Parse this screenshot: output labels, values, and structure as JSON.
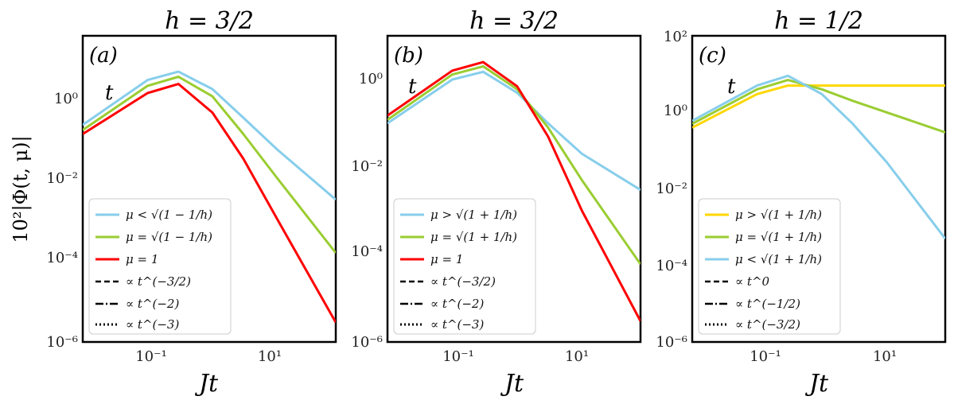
{
  "figure": {
    "ylabel": "10²|Φ(t, μ)|",
    "xlabel": "Jt"
  },
  "chart_data": [
    {
      "type": "line",
      "panel_tag": "(a)",
      "title": "h = 3/2",
      "xlabel": "Jt",
      "ylabel": "10²|Φ(t, μ)|",
      "xscale": "log",
      "yscale": "log",
      "xlim": [
        0.01,
        80
      ],
      "ylim": [
        1e-06,
        30
      ],
      "xticks": [
        "10⁻¹",
        "10¹"
      ],
      "yticks": [
        "10⁰",
        "10⁻²",
        "10⁻⁴",
        "10⁻⁶"
      ],
      "annotation": "t",
      "legend_position": "lower-left",
      "series": [
        {
          "name": "μ < √(1 − 1/h)",
          "color": "#87ceeb",
          "style": "solid",
          "x": [
            0.01,
            0.1,
            0.3,
            1,
            3,
            10,
            80
          ],
          "y": [
            0.2,
            2.5,
            4,
            1.5,
            0.3,
            0.05,
            0.003
          ]
        },
        {
          "name": "μ = √(1 − 1/h)",
          "color": "#9acd32",
          "style": "solid",
          "x": [
            0.01,
            0.1,
            0.3,
            1,
            3,
            10,
            80
          ],
          "y": [
            0.15,
            1.8,
            3,
            1,
            0.12,
            0.01,
            0.00015
          ]
        },
        {
          "name": "μ = 1",
          "color": "#ff0000",
          "style": "solid",
          "x": [
            0.01,
            0.1,
            0.3,
            1,
            3,
            10,
            80
          ],
          "y": [
            0.12,
            1.2,
            2,
            0.4,
            0.03,
            0.001,
            3e-06
          ]
        }
      ],
      "guides": [
        {
          "name": "∝ t^(−3/2)",
          "style": "dashed"
        },
        {
          "name": "∝ t^(−2)",
          "style": "dashdot"
        },
        {
          "name": "∝ t^(−3)",
          "style": "dotted"
        }
      ]
    },
    {
      "type": "line",
      "panel_tag": "(b)",
      "title": "h = 3/2",
      "xlabel": "Jt",
      "xscale": "log",
      "yscale": "log",
      "xlim": [
        0.01,
        80
      ],
      "ylim": [
        1e-06,
        10
      ],
      "xticks": [
        "10⁻¹",
        "10¹"
      ],
      "yticks": [
        "10⁰",
        "10⁻²",
        "10⁻⁴",
        "10⁻⁶"
      ],
      "annotation": "t",
      "legend_position": "lower-left",
      "series": [
        {
          "name": "μ > √(1 + 1/h)",
          "color": "#87ceeb",
          "style": "solid",
          "x": [
            0.01,
            0.1,
            0.3,
            1,
            3,
            10,
            80
          ],
          "y": [
            0.1,
            1,
            1.5,
            0.5,
            0.1,
            0.02,
            0.003
          ]
        },
        {
          "name": "μ = √(1 + 1/h)",
          "color": "#9acd32",
          "style": "solid",
          "x": [
            0.01,
            0.1,
            0.3,
            1,
            3,
            10,
            80
          ],
          "y": [
            0.12,
            1.3,
            2,
            0.6,
            0.08,
            0.005,
            6e-05
          ]
        },
        {
          "name": "μ = 1",
          "color": "#ff0000",
          "style": "solid",
          "x": [
            0.01,
            0.1,
            0.3,
            1,
            3,
            10,
            80
          ],
          "y": [
            0.15,
            1.6,
            2.5,
            0.7,
            0.05,
            0.001,
            3e-06
          ]
        }
      ],
      "guides": [
        {
          "name": "∝ t^(−3/2)",
          "style": "dashed"
        },
        {
          "name": "∝ t^(−2)",
          "style": "dashdot"
        },
        {
          "name": "∝ t^(−3)",
          "style": "dotted"
        }
      ]
    },
    {
      "type": "line",
      "panel_tag": "(c)",
      "title": "h = 1/2",
      "xlabel": "Jt",
      "xscale": "log",
      "yscale": "log",
      "xlim": [
        0.01,
        80
      ],
      "ylim": [
        1e-06,
        100
      ],
      "xticks": [
        "10⁻¹",
        "10¹"
      ],
      "yticks": [
        "10²",
        "10⁰",
        "10⁻²",
        "10⁻⁴",
        "10⁻⁶"
      ],
      "annotation": "t",
      "legend_position": "lower-left",
      "series": [
        {
          "name": "μ > √(1 + 1/h)",
          "color": "#ffd700",
          "style": "solid",
          "x": [
            0.01,
            0.1,
            0.3,
            1,
            3,
            10,
            80
          ],
          "y": [
            0.4,
            3,
            5,
            5,
            5,
            5,
            5
          ]
        },
        {
          "name": "μ = √(1 + 1/h)",
          "color": "#9acd32",
          "style": "solid",
          "x": [
            0.01,
            0.1,
            0.3,
            1,
            3,
            10,
            80
          ],
          "y": [
            0.5,
            4,
            7,
            4,
            2,
            1,
            0.3
          ]
        },
        {
          "name": "μ < √(1 + 1/h)",
          "color": "#87ceeb",
          "style": "solid",
          "x": [
            0.01,
            0.1,
            0.3,
            1,
            3,
            10,
            80
          ],
          "y": [
            0.6,
            5,
            9,
            3,
            0.5,
            0.05,
            0.0005
          ]
        }
      ],
      "guides": [
        {
          "name": "∝ t^0",
          "style": "dashed"
        },
        {
          "name": "∝ t^(−1/2)",
          "style": "dashdot"
        },
        {
          "name": "∝ t^(−3/2)",
          "style": "dotted"
        }
      ]
    }
  ]
}
